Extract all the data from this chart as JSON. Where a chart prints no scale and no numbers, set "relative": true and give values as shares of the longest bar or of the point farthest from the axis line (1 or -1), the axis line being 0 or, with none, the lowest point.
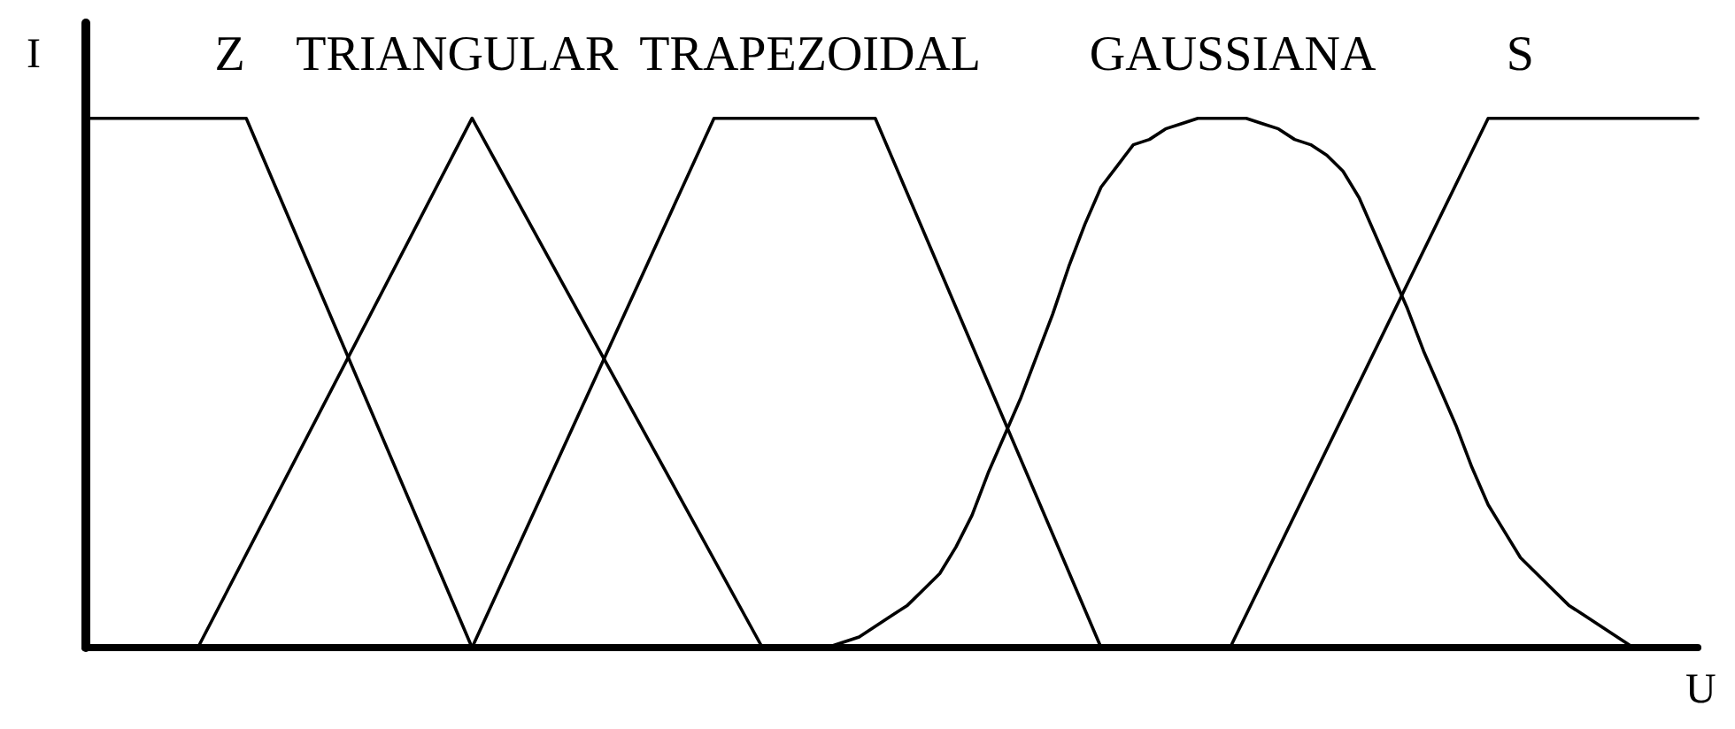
{
  "chart_data": {
    "type": "line",
    "relative": true,
    "xlabel": "U",
    "ylabel": "I",
    "marker": "none",
    "line_style": "solid",
    "categories": [
      null,
      null,
      null,
      null,
      null,
      null,
      null,
      null,
      null,
      null,
      null,
      null,
      null,
      null,
      null,
      null,
      null,
      null,
      null,
      null,
      null,
      null,
      null,
      null,
      null,
      null,
      null,
      null,
      null,
      null,
      null,
      null,
      null,
      null,
      null,
      null,
      null,
      null,
      null,
      null,
      null,
      null,
      null,
      null,
      null,
      null,
      null,
      null,
      null,
      null,
      null,
      null,
      null,
      null,
      null,
      null,
      null,
      null,
      null,
      null,
      null,
      null,
      null,
      null,
      null,
      null,
      null,
      null,
      null,
      null,
      null,
      null,
      null,
      null,
      null,
      null,
      null,
      null,
      null,
      null,
      null,
      null,
      null,
      null,
      null,
      null,
      null,
      null,
      null,
      null,
      null,
      null,
      null,
      null,
      null,
      null,
      null,
      null,
      null,
      null,
      null
    ],
    "series": [
      {
        "name": "Z",
        "color": "#000000",
        "values": [
          1,
          null,
          null,
          null,
          null,
          null,
          null,
          null,
          null,
          null,
          1,
          null,
          null,
          null,
          null,
          null,
          null,
          null,
          null,
          null,
          null,
          null,
          null,
          null,
          0,
          null,
          null,
          null,
          null,
          null,
          null,
          null,
          null,
          null,
          null,
          null,
          null,
          null,
          null,
          null,
          null,
          null,
          null,
          null,
          null,
          null,
          null,
          null,
          null,
          null,
          null,
          null,
          null,
          null,
          null,
          null,
          null,
          null,
          null,
          null,
          null,
          null,
          null,
          null,
          null,
          null,
          null,
          null,
          null,
          null,
          null,
          null,
          null,
          null,
          null,
          null,
          null,
          null,
          null,
          null,
          null,
          null,
          null,
          null,
          null,
          null,
          null,
          null,
          null,
          null,
          null,
          null,
          null,
          null,
          null,
          null,
          null,
          null,
          null,
          null,
          null
        ]
      },
      {
        "name": "TRIANGULAR",
        "color": "#000000",
        "values": [
          null,
          null,
          null,
          null,
          null,
          null,
          null,
          0,
          null,
          null,
          null,
          null,
          null,
          null,
          null,
          null,
          null,
          null,
          null,
          null,
          null,
          null,
          null,
          null,
          1,
          null,
          null,
          null,
          null,
          null,
          null,
          null,
          null,
          null,
          null,
          null,
          null,
          null,
          null,
          null,
          null,
          null,
          0,
          null,
          null,
          null,
          null,
          null,
          null,
          null,
          null,
          null,
          null,
          null,
          null,
          null,
          null,
          null,
          null,
          null,
          null,
          null,
          null,
          null,
          null,
          null,
          null,
          null,
          null,
          null,
          null,
          null,
          null,
          null,
          null,
          null,
          null,
          null,
          null,
          null,
          null,
          null,
          null,
          null,
          null,
          null,
          null,
          null,
          null,
          null,
          null,
          null,
          null,
          null,
          null,
          null,
          null,
          null,
          null,
          null,
          null
        ]
      },
      {
        "name": "TRAPEZOIDAL",
        "color": "#000000",
        "values": [
          null,
          null,
          null,
          null,
          null,
          null,
          null,
          null,
          null,
          null,
          null,
          null,
          null,
          null,
          null,
          null,
          null,
          null,
          null,
          null,
          null,
          null,
          null,
          null,
          0,
          null,
          null,
          null,
          null,
          null,
          null,
          null,
          null,
          null,
          null,
          null,
          null,
          null,
          null,
          1,
          null,
          null,
          null,
          null,
          null,
          null,
          null,
          null,
          null,
          1,
          null,
          null,
          null,
          null,
          null,
          null,
          null,
          null,
          null,
          null,
          null,
          null,
          null,
          0,
          null,
          null,
          null,
          null,
          null,
          null,
          null,
          null,
          null,
          null,
          null,
          null,
          null,
          null,
          null,
          null,
          null,
          null,
          null,
          null,
          null,
          null,
          null,
          null,
          null,
          null,
          null,
          null,
          null,
          null,
          null,
          null,
          null,
          null,
          null,
          null,
          null
        ]
      },
      {
        "name": "GAUSSIANA",
        "color": "#000000",
        "values": [
          null,
          null,
          null,
          null,
          null,
          null,
          null,
          null,
          null,
          null,
          null,
          null,
          null,
          null,
          null,
          null,
          null,
          null,
          null,
          null,
          null,
          null,
          null,
          null,
          null,
          null,
          null,
          null,
          null,
          null,
          null,
          null,
          null,
          null,
          null,
          null,
          null,
          null,
          null,
          null,
          null,
          null,
          null,
          null,
          null,
          null,
          0,
          0.01,
          0.02,
          0.04,
          0.06,
          0.08,
          0.11,
          0.14,
          0.19,
          0.25,
          0.33,
          0.4,
          0.47,
          0.55,
          0.63,
          0.72,
          0.8,
          0.87,
          0.91,
          0.95,
          0.96,
          0.98,
          0.99,
          1,
          1,
          1,
          1,
          0.99,
          0.98,
          0.96,
          0.95,
          0.93,
          0.9,
          0.85,
          0.78,
          0.71,
          0.64,
          0.56,
          0.49,
          0.42,
          0.34,
          0.27,
          0.22,
          0.17,
          0.14,
          0.11,
          0.08,
          0.06,
          0.04,
          0.02,
          0,
          null,
          null,
          null,
          null
        ]
      },
      {
        "name": "S",
        "color": "#000000",
        "values": [
          null,
          null,
          null,
          null,
          null,
          null,
          null,
          null,
          null,
          null,
          null,
          null,
          null,
          null,
          null,
          null,
          null,
          null,
          null,
          null,
          null,
          null,
          null,
          null,
          null,
          null,
          null,
          null,
          null,
          null,
          null,
          null,
          null,
          null,
          null,
          null,
          null,
          null,
          null,
          null,
          null,
          null,
          null,
          null,
          null,
          null,
          null,
          null,
          null,
          null,
          null,
          null,
          null,
          null,
          null,
          null,
          null,
          null,
          null,
          null,
          null,
          null,
          null,
          null,
          null,
          null,
          null,
          null,
          null,
          null,
          null,
          0,
          null,
          null,
          null,
          null,
          null,
          null,
          null,
          null,
          null,
          null,
          null,
          null,
          null,
          null,
          null,
          1,
          null,
          null,
          null,
          null,
          null,
          null,
          null,
          null,
          null,
          null,
          null,
          null,
          1
        ]
      }
    ]
  }
}
